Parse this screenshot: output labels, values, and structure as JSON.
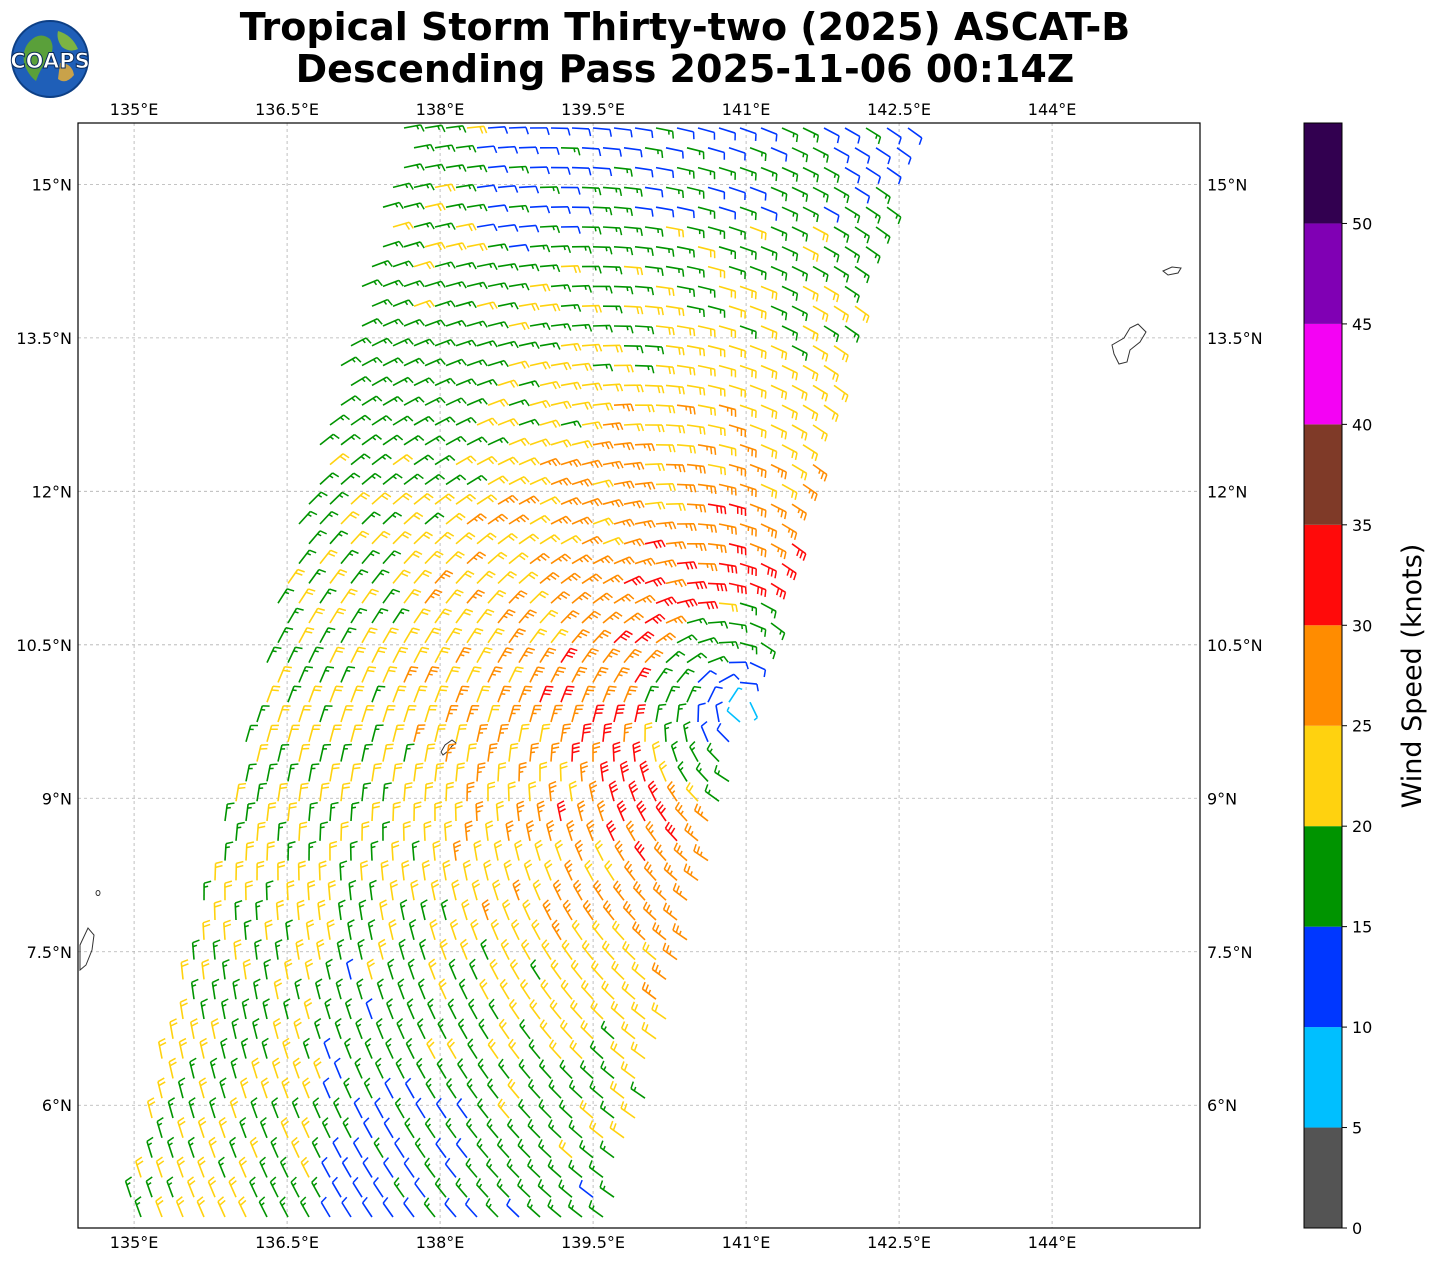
{
  "title": {
    "line1": "Tropical Storm Thirty-two (2025) ASCAT-B",
    "line2": "Descending Pass 2025-11-06 00:14Z"
  },
  "logo": {
    "text": "COAPS",
    "icon": "globe-logo-icon"
  },
  "map": {
    "lon_ticks": [
      {
        "value": 135.0,
        "label": "135°E"
      },
      {
        "value": 136.5,
        "label": "136.5°E"
      },
      {
        "value": 138.0,
        "label": "138°E"
      },
      {
        "value": 139.5,
        "label": "139.5°E"
      },
      {
        "value": 141.0,
        "label": "141°E"
      },
      {
        "value": 142.5,
        "label": "142.5°E"
      },
      {
        "value": 144.0,
        "label": "144°E"
      }
    ],
    "lat_ticks": [
      {
        "value": 15.0,
        "label": "15°N"
      },
      {
        "value": 13.5,
        "label": "13.5°N"
      },
      {
        "value": 12.0,
        "label": "12°N"
      },
      {
        "value": 10.5,
        "label": "10.5°N"
      },
      {
        "value": 9.0,
        "label": "9°N"
      },
      {
        "value": 7.5,
        "label": "7.5°N"
      },
      {
        "value": 6.0,
        "label": "6°N"
      }
    ],
    "lon_range": [
      134.45,
      145.45
    ],
    "lat_range": [
      4.8,
      15.6
    ],
    "gridlines": true,
    "storm_center": {
      "lon": 141.0,
      "lat": 9.9
    }
  },
  "colorbar": {
    "label": "Wind Speed (knots)",
    "ticks": [
      "0",
      "5",
      "10",
      "15",
      "20",
      "25",
      "30",
      "35",
      "40",
      "45",
      "50"
    ],
    "bins": [
      {
        "min": 0,
        "max": 5,
        "color": "#545454"
      },
      {
        "min": 5,
        "max": 10,
        "color": "#00bfff"
      },
      {
        "min": 10,
        "max": 15,
        "color": "#0037ff"
      },
      {
        "min": 15,
        "max": 20,
        "color": "#009400"
      },
      {
        "min": 20,
        "max": 25,
        "color": "#ffd20f"
      },
      {
        "min": 25,
        "max": 30,
        "color": "#ff8c00"
      },
      {
        "min": 30,
        "max": 35,
        "color": "#ff0a0a"
      },
      {
        "min": 35,
        "max": 40,
        "color": "#7f3a28"
      },
      {
        "min": 40,
        "max": 45,
        "color": "#f402f4"
      },
      {
        "min": 45,
        "max": 50,
        "color": "#8000b4"
      },
      {
        "min": 50,
        "max": 55,
        "color": "#320050"
      }
    ]
  }
}
